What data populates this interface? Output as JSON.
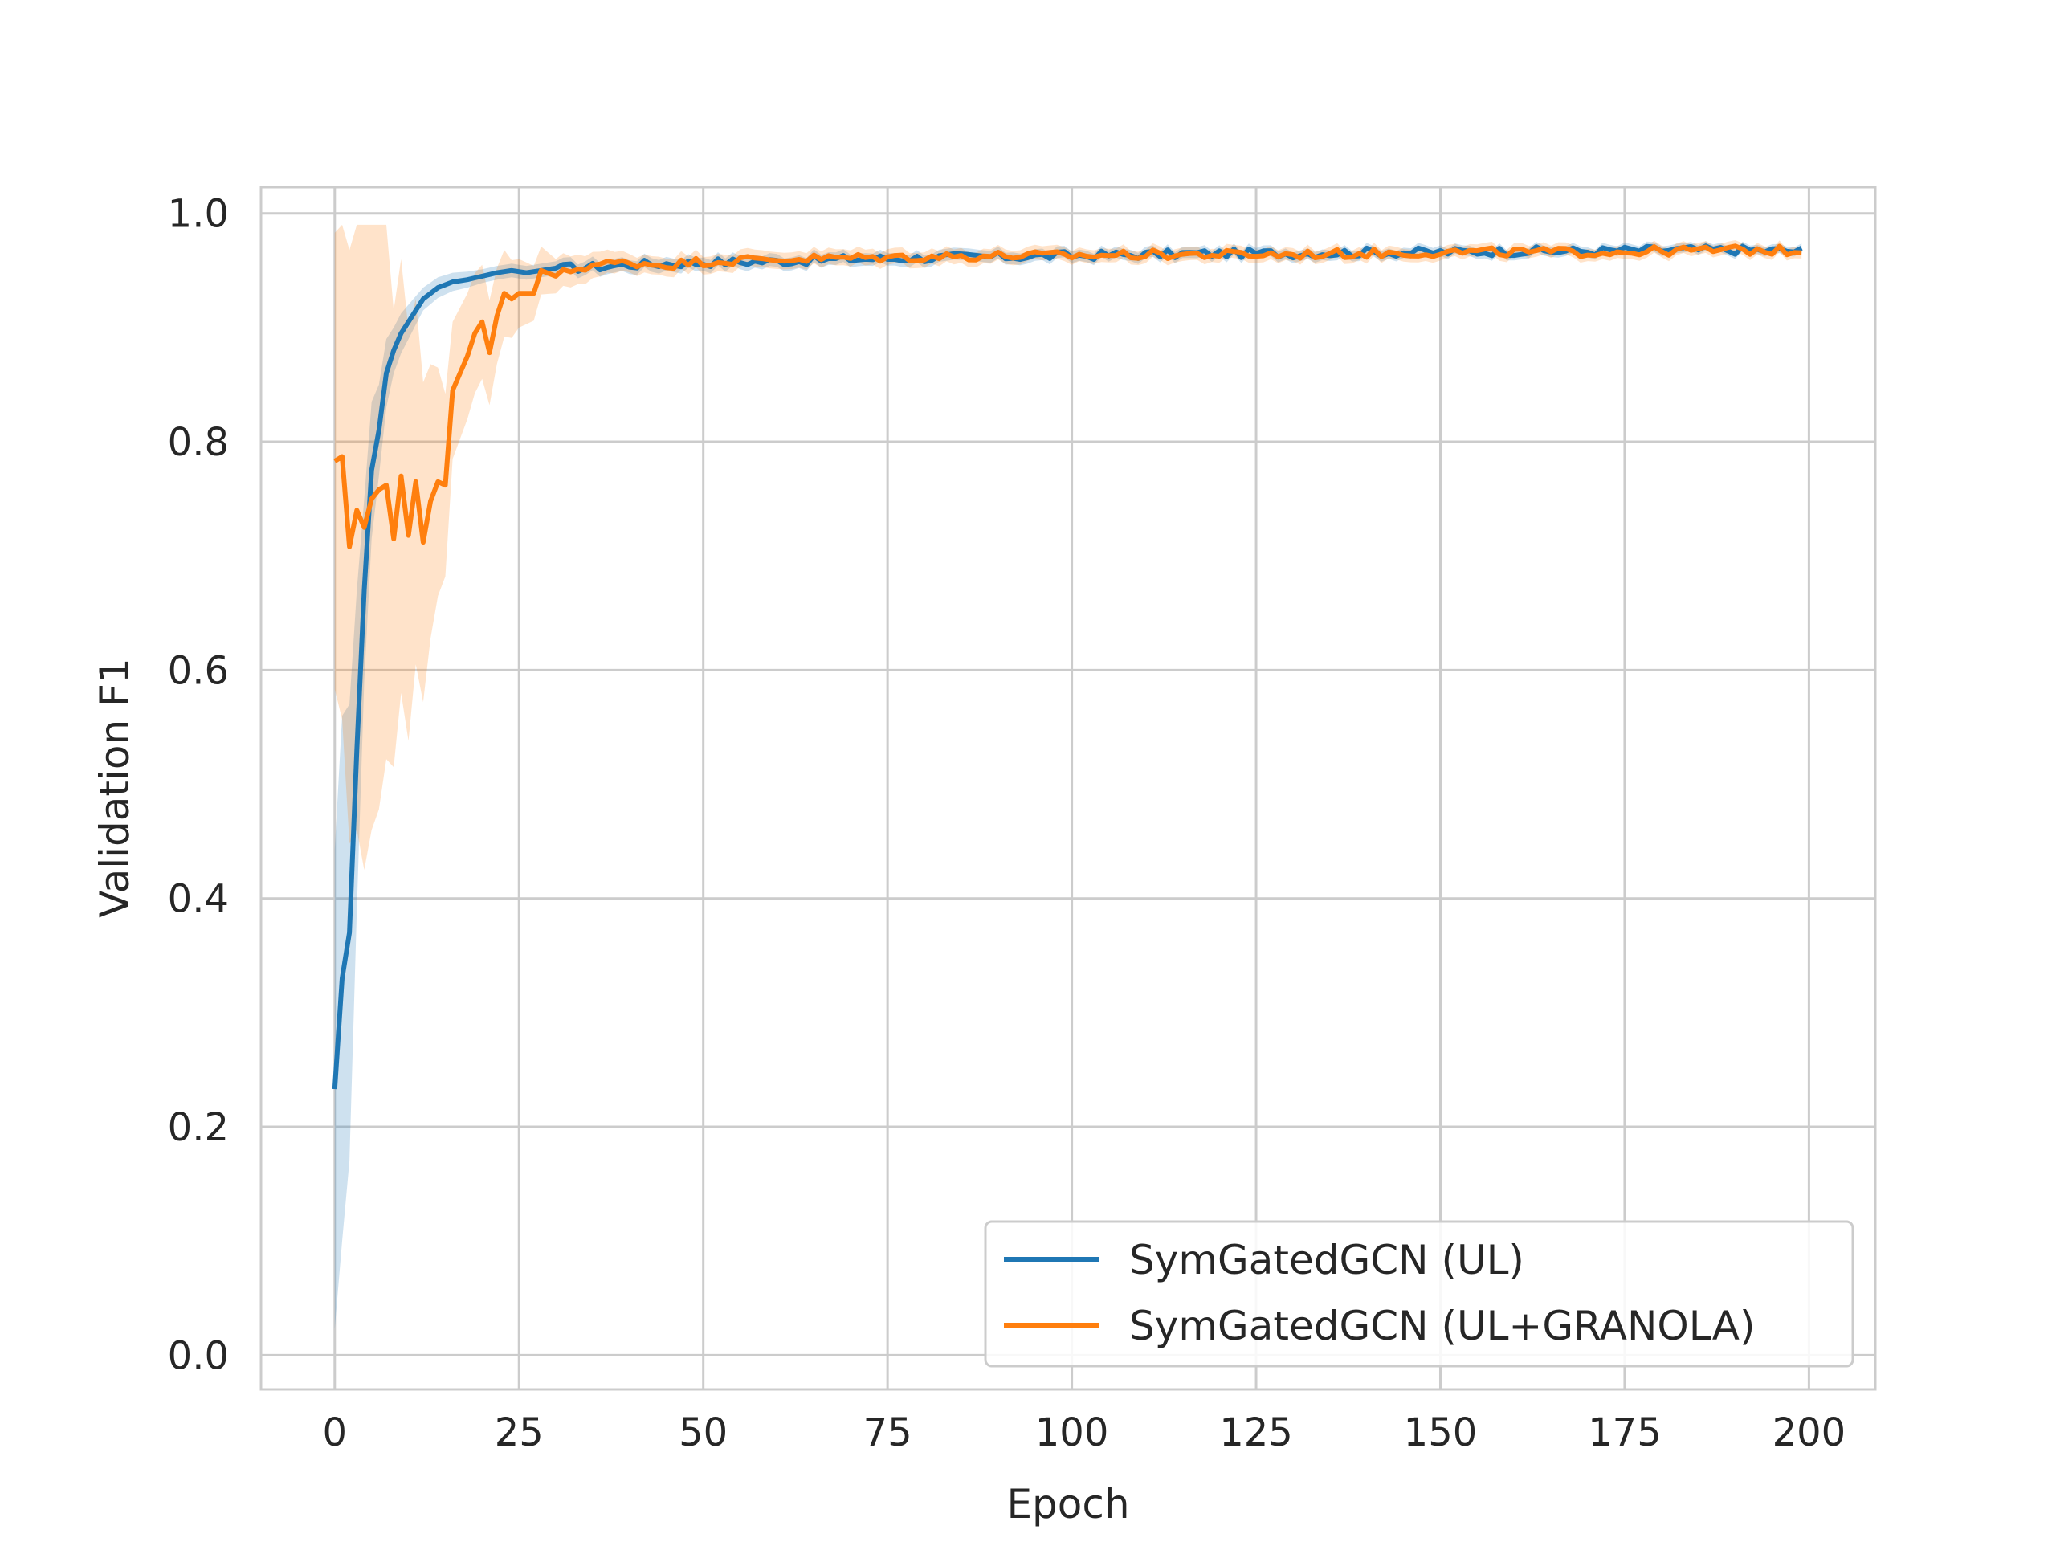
{
  "chart_data": {
    "type": "line",
    "xlabel": "Epoch",
    "ylabel": "Validation F1",
    "xlim": [
      -10,
      209
    ],
    "ylim": [
      -0.03,
      1.023
    ],
    "xticks": [
      0,
      25,
      50,
      75,
      100,
      125,
      150,
      175,
      200
    ],
    "xtick_labels": [
      "0",
      "25",
      "50",
      "75",
      "100",
      "125",
      "150",
      "175",
      "200"
    ],
    "yticks": [
      0.0,
      0.2,
      0.4,
      0.6,
      0.8,
      1.0
    ],
    "ytick_labels": [
      "0.0",
      "0.2",
      "0.4",
      "0.6",
      "0.8",
      "1.0"
    ],
    "grid": true,
    "legend_position": "lower-right",
    "colors": {
      "series1": "#1f77b4",
      "series2": "#ff7f0e",
      "grid": "#cccccc",
      "spine": "#cccccc"
    },
    "series": [
      {
        "name": "SymGatedGCN (UL)",
        "keypoints_x": [
          0,
          1,
          2,
          3,
          4,
          5,
          6,
          7,
          8,
          9,
          10,
          12,
          14,
          16,
          18,
          20,
          22,
          24,
          26,
          28,
          30,
          35,
          40,
          45,
          50,
          60,
          70,
          80,
          90,
          100,
          110,
          120,
          130,
          140,
          150,
          160,
          170,
          180,
          190,
          199
        ],
        "keypoints_y": [
          0.233,
          0.33,
          0.37,
          0.53,
          0.67,
          0.775,
          0.81,
          0.86,
          0.88,
          0.895,
          0.905,
          0.925,
          0.935,
          0.94,
          0.942,
          0.945,
          0.948,
          0.95,
          0.948,
          0.95,
          0.952,
          0.953,
          0.955,
          0.956,
          0.957,
          0.958,
          0.96,
          0.961,
          0.962,
          0.963,
          0.964,
          0.965,
          0.965,
          0.966,
          0.966,
          0.967,
          0.967,
          0.968,
          0.968,
          0.967
        ],
        "band_half_width_x": [
          0,
          1,
          2,
          4,
          6,
          8,
          12,
          20,
          40,
          100,
          199
        ],
        "band_half_width": [
          0.21,
          0.23,
          0.2,
          0.08,
          0.04,
          0.02,
          0.01,
          0.006,
          0.006,
          0.005,
          0.004
        ]
      },
      {
        "name": "SymGatedGCN (UL+GRANOLA)",
        "keypoints_x": [
          0,
          1,
          2,
          3,
          4,
          5,
          6,
          7,
          8,
          9,
          10,
          11,
          12,
          13,
          14,
          15,
          16,
          17,
          18,
          19,
          20,
          21,
          22,
          23,
          24,
          25,
          26,
          27,
          28,
          30,
          32,
          35,
          40,
          45,
          50,
          60,
          70,
          80,
          90,
          100,
          110,
          120,
          130,
          140,
          150,
          160,
          170,
          180,
          190,
          199
        ],
        "keypoints_y": [
          0.783,
          0.787,
          0.708,
          0.74,
          0.725,
          0.75,
          0.758,
          0.762,
          0.715,
          0.77,
          0.718,
          0.765,
          0.712,
          0.748,
          0.765,
          0.762,
          0.845,
          0.86,
          0.875,
          0.895,
          0.905,
          0.878,
          0.91,
          0.93,
          0.925,
          0.93,
          0.93,
          0.93,
          0.95,
          0.945,
          0.95,
          0.955,
          0.957,
          0.955,
          0.958,
          0.96,
          0.961,
          0.962,
          0.963,
          0.963,
          0.964,
          0.964,
          0.964,
          0.965,
          0.966,
          0.966,
          0.966,
          0.967,
          0.968,
          0.967
        ],
        "band_half_width_x": [
          0,
          2,
          4,
          6,
          8,
          10,
          12,
          14,
          16,
          20,
          25,
          30,
          40,
          100,
          199
        ],
        "band_half_width": [
          0.2,
          0.26,
          0.3,
          0.28,
          0.2,
          0.18,
          0.14,
          0.1,
          0.06,
          0.05,
          0.03,
          0.015,
          0.008,
          0.006,
          0.005
        ]
      }
    ]
  },
  "legend": {
    "entries": [
      "SymGatedGCN (UL)",
      "SymGatedGCN (UL+GRANOLA)"
    ]
  }
}
